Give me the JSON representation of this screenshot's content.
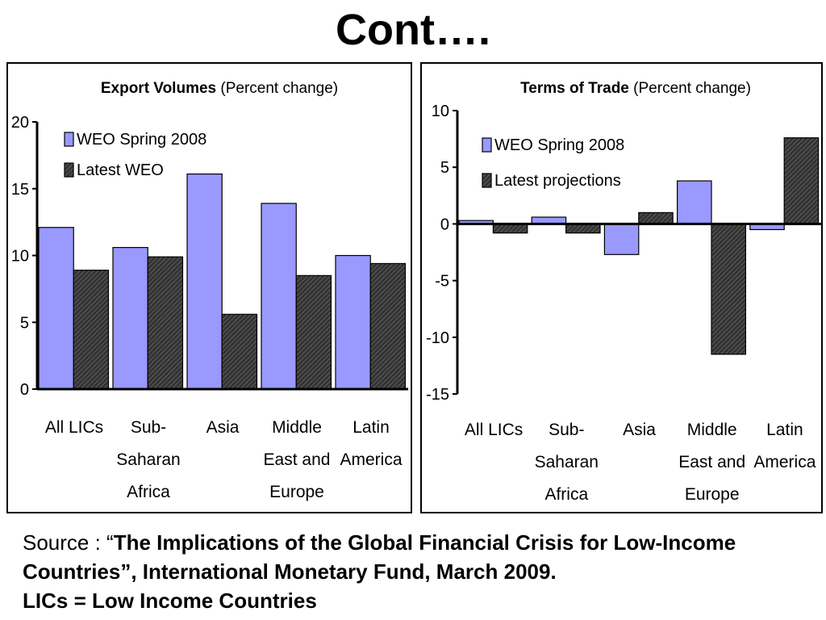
{
  "slide": {
    "title": "Cont…."
  },
  "source": {
    "prefix": "Source : “",
    "citation": "The Implications of the Global Financial Crisis for Low-Income Countries”, International Monetary Fund, March 2009.",
    "note": "LICs = Low Income Countries"
  },
  "colors": {
    "series_light": "#9999ff",
    "series_dark": "#333333"
  },
  "chart_data": [
    {
      "type": "bar",
      "title": "Export Volumes (Percent change)",
      "title_bold": "Export Volumes",
      "title_rest": " (Percent change)",
      "categories": [
        [
          "All LICs"
        ],
        [
          "Sub-",
          "Saharan",
          "Africa"
        ],
        [
          "Asia"
        ],
        [
          "Middle",
          "East and",
          "Europe"
        ],
        [
          "Latin",
          "America"
        ]
      ],
      "series": [
        {
          "name": "WEO Spring 2008",
          "values": [
            12.1,
            10.6,
            16.1,
            13.9,
            10.0
          ]
        },
        {
          "name": "Latest WEO",
          "values": [
            8.9,
            9.9,
            5.6,
            8.5,
            9.4
          ]
        }
      ],
      "ylim": [
        0,
        20
      ],
      "yticks": [
        0,
        5,
        10,
        15,
        20
      ],
      "legend": "top-left"
    },
    {
      "type": "bar",
      "title": "Terms of Trade (Percent change)",
      "title_bold": "Terms of Trade",
      "title_rest": " (Percent change)",
      "categories": [
        [
          "All LICs"
        ],
        [
          "Sub-",
          "Saharan",
          "Africa"
        ],
        [
          "Asia"
        ],
        [
          "Middle",
          "East and",
          "Europe"
        ],
        [
          "Latin",
          "America"
        ]
      ],
      "series": [
        {
          "name": "WEO Spring 2008",
          "values": [
            0.3,
            0.6,
            -2.7,
            3.8,
            -0.5
          ]
        },
        {
          "name": "Latest projections",
          "values": [
            -0.8,
            -0.8,
            1.0,
            -11.5,
            7.6
          ]
        }
      ],
      "ylim": [
        -15,
        10
      ],
      "yticks": [
        -15,
        -10,
        -5,
        0,
        5,
        10
      ],
      "legend": "top-left"
    }
  ]
}
